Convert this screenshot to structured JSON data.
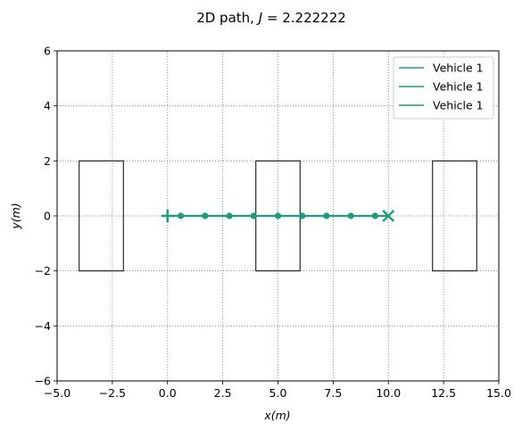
{
  "chart_data": {
    "type": "line",
    "title_prefix": "2D path, ",
    "title_var": "J",
    "title_eq": " = 2.222222",
    "xlabel": "x(m)",
    "ylabel": "y(m)",
    "xlim": [
      -5,
      15
    ],
    "ylim": [
      -6,
      6
    ],
    "xticks": [
      -5.0,
      -2.5,
      0.0,
      2.5,
      5.0,
      7.5,
      10.0,
      12.5,
      15.0
    ],
    "xtick_labels": [
      "−5.0",
      "−2.5",
      "0.0",
      "2.5",
      "5.0",
      "7.5",
      "10.0",
      "12.5",
      "15.0"
    ],
    "yticks": [
      -6,
      -4,
      -2,
      0,
      2,
      4,
      6
    ],
    "ytick_labels": [
      "−6",
      "−4",
      "−2",
      "0",
      "2",
      "4",
      "6"
    ],
    "grid": true,
    "legend_position": "top-right",
    "series": [
      {
        "name": "Vehicle 1",
        "color": "#1b9e77",
        "x": [
          0,
          0.6,
          1.7,
          2.8,
          3.9,
          5.0,
          6.1,
          7.2,
          8.3,
          9.4,
          10
        ],
        "y": [
          0,
          0,
          0,
          0,
          0,
          0,
          0,
          0,
          0,
          0,
          0
        ],
        "waypoints_x": [
          0.6,
          1.7,
          2.8,
          3.9,
          5.0,
          6.1,
          7.2,
          8.3,
          9.4
        ],
        "start": [
          0,
          0
        ],
        "goal": [
          10,
          0
        ]
      }
    ],
    "legend_entries": [
      "Vehicle 1",
      "Vehicle 1",
      "Vehicle 1"
    ],
    "obstacles": [
      {
        "x0": -4,
        "x1": -2,
        "y0": -2,
        "y1": 2
      },
      {
        "x0": 4,
        "x1": 6,
        "y0": -2,
        "y1": 2
      },
      {
        "x0": 12,
        "x1": 14,
        "y0": -2,
        "y1": 2
      }
    ]
  }
}
